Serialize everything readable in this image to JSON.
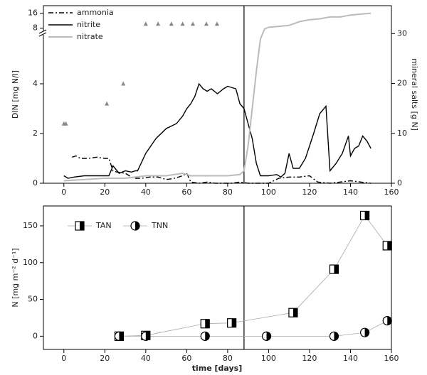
{
  "chart_data": [
    {
      "type": "line",
      "y_label": "DIN [mg N/l]",
      "y2_label": "mineral salts [g N]",
      "xlim": [
        -10,
        160
      ],
      "xticks": [
        0,
        20,
        40,
        60,
        80,
        100,
        120,
        140,
        160
      ],
      "ylim": [
        0,
        6
      ],
      "yticks": [
        0,
        2,
        4
      ],
      "ylim_upper": [
        6,
        20
      ],
      "yticks_upper": [
        8,
        16
      ],
      "y2lim": [
        0,
        35.6
      ],
      "y2ticks": [
        0,
        10,
        20,
        30
      ],
      "vline": 88,
      "series": [
        {
          "name": "ammonia",
          "color": "#000000",
          "style": "dashdot",
          "x": [
            4,
            6,
            8,
            12,
            16,
            20,
            22,
            24,
            26,
            30,
            34,
            38,
            42,
            46,
            50,
            54,
            58,
            60,
            62,
            66,
            70,
            74,
            78,
            82,
            86,
            90,
            95,
            100,
            105,
            110,
            115,
            120,
            124,
            130,
            135,
            140,
            145,
            150
          ],
          "values": [
            1.05,
            1.1,
            1.0,
            1.0,
            1.05,
            1.0,
            1.0,
            0.5,
            0.45,
            0.4,
            0.2,
            0.2,
            0.25,
            0.25,
            0.15,
            0.2,
            0.3,
            0.4,
            0.05,
            0,
            0.05,
            0,
            0,
            0,
            0.05,
            0,
            0,
            0,
            0.2,
            0.25,
            0.25,
            0.3,
            0.05,
            0,
            0.05,
            0.1,
            0.05,
            0
          ]
        },
        {
          "name": "nitrite",
          "color": "#000000",
          "style": "solid",
          "x": [
            0,
            2,
            5,
            10,
            15,
            20,
            22,
            24,
            27,
            30,
            33,
            35,
            36,
            40,
            45,
            50,
            55,
            58,
            60,
            62,
            64,
            66,
            68,
            70,
            72,
            75,
            78,
            80,
            84,
            86,
            88,
            90,
            92,
            94,
            96,
            100,
            104,
            106,
            108,
            110,
            112,
            115,
            118,
            122,
            125,
            128,
            130,
            133,
            136,
            139,
            140,
            142,
            144,
            146,
            148,
            150
          ],
          "values": [
            0.3,
            0.2,
            0.25,
            0.3,
            0.3,
            0.3,
            0.3,
            0.7,
            0.4,
            0.5,
            0.45,
            0.5,
            0.5,
            1.2,
            1.8,
            2.2,
            2.4,
            2.7,
            3.0,
            3.2,
            3.5,
            4.0,
            3.8,
            3.7,
            3.8,
            3.6,
            3.8,
            3.9,
            3.8,
            3.2,
            3.0,
            2.4,
            1.8,
            0.8,
            0.3,
            0.3,
            0.35,
            0.25,
            0.4,
            1.2,
            0.6,
            0.6,
            1.0,
            2.0,
            2.8,
            3.1,
            0.5,
            0.8,
            1.2,
            1.9,
            1.1,
            1.4,
            1.5,
            1.9,
            1.7,
            1.4
          ]
        },
        {
          "name": "nitrate",
          "color": "#bbbbbb",
          "style": "solid",
          "x": [
            0,
            10,
            20,
            30,
            40,
            50,
            58,
            62,
            70,
            80,
            86,
            88,
            90,
            92,
            94,
            96,
            98,
            100,
            105,
            110,
            115,
            120,
            125,
            130,
            135,
            140,
            145,
            150
          ],
          "values": [
            0.1,
            0.15,
            0.2,
            0.2,
            0.3,
            0.3,
            0.4,
            0.3,
            0.3,
            0.3,
            0.35,
            0.5,
            1.5,
            3.0,
            4.5,
            5.8,
            7.5,
            8.5,
            9,
            9.5,
            11.5,
            12.5,
            13,
            14,
            14,
            15,
            15.5,
            16
          ]
        },
        {
          "name": "mineral salts",
          "color": "#888888",
          "style": "triangle",
          "axis": "y2",
          "x": [
            0,
            1,
            21,
            29,
            40,
            46,
            52.5,
            58,
            63,
            69.6,
            74.8
          ],
          "values": [
            12,
            12,
            16,
            20,
            32,
            32,
            32,
            32,
            32,
            32,
            32
          ]
        }
      ]
    },
    {
      "type": "scatter",
      "x_label": "time [days]",
      "y_label": "N [mg m⁻² d⁻¹]",
      "xlim": [
        -10,
        160
      ],
      "xticks": [
        0,
        20,
        40,
        60,
        80,
        100,
        120,
        140,
        160
      ],
      "ylim": [
        -18,
        177
      ],
      "yticks": [
        0,
        50,
        100,
        150
      ],
      "vline": 88,
      "series": [
        {
          "name": "TAN",
          "color": "#000000",
          "marker": "square",
          "x": [
            27,
            40,
            69,
            82,
            112,
            132,
            147,
            158
          ],
          "values": [
            0,
            1,
            17,
            18,
            32,
            91,
            164,
            123
          ]
        },
        {
          "name": "TNN",
          "color": "#000000",
          "marker": "circle",
          "x": [
            27,
            40,
            69,
            99,
            132,
            147,
            158
          ],
          "values": [
            0,
            0,
            0,
            0,
            0,
            5,
            21
          ]
        }
      ]
    }
  ]
}
